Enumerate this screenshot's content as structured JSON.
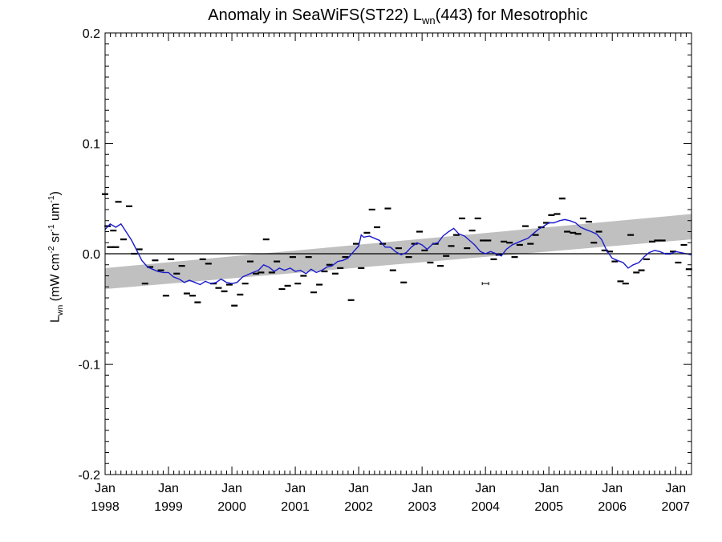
{
  "chart_data": {
    "type": "scatter",
    "title": {
      "pre": "Anomaly in SeaWiFS(ST22) L",
      "sub": "wn",
      "post": "(443) for Mesotrophic"
    },
    "ylabel": {
      "pre": "L",
      "sub": "wn",
      "mid": " (mW cm",
      "sup1": "-2",
      "mid2": " sr",
      "sup2": "-1",
      "mid3": " um",
      "sup3": "-1",
      "post": ")"
    },
    "xlim": [
      1998.0,
      2007.25
    ],
    "ylim": [
      -0.2,
      0.2
    ],
    "yticks": [
      -0.2,
      -0.1,
      0.0,
      0.1,
      0.2
    ],
    "ytick_labels": [
      "-0.2",
      "-0.1",
      "0.0",
      "0.1",
      "0.2"
    ],
    "xticks": [
      1998,
      1999,
      2000,
      2001,
      2002,
      2003,
      2004,
      2005,
      2006,
      2007
    ],
    "xtick_month_label": "Jan",
    "xtick_year_labels": [
      "1998",
      "1999",
      "2000",
      "2001",
      "2002",
      "2003",
      "2004",
      "2005",
      "2006",
      "2007"
    ],
    "zero_line": 0.0,
    "trend_band": {
      "x": [
        1998.0,
        2007.25
      ],
      "lower": [
        -0.032,
        0.013
      ],
      "upper": [
        -0.013,
        0.036
      ],
      "color": "#c0c0c0"
    },
    "colors": {
      "points": "#000000",
      "running_mean": "#1a1acc",
      "axes": "#000000"
    },
    "points": [
      [
        1998.0,
        0.054
      ],
      [
        1998.04,
        0.025
      ],
      [
        1998.08,
        0.006
      ],
      [
        1998.13,
        0.021
      ],
      [
        1998.17,
        0.006
      ],
      [
        1998.21,
        0.047
      ],
      [
        1998.29,
        0.013
      ],
      [
        1998.38,
        0.043
      ],
      [
        1998.46,
        0.0
      ],
      [
        1998.54,
        0.004
      ],
      [
        1998.63,
        -0.027
      ],
      [
        1998.71,
        -0.012
      ],
      [
        1998.79,
        -0.006
      ],
      [
        1998.88,
        -0.015
      ],
      [
        1998.96,
        -0.038
      ],
      [
        1999.04,
        -0.005
      ],
      [
        1999.13,
        -0.018
      ],
      [
        1999.21,
        -0.011
      ],
      [
        1999.29,
        -0.036
      ],
      [
        1999.38,
        -0.038
      ],
      [
        1999.46,
        -0.044
      ],
      [
        1999.54,
        -0.005
      ],
      [
        1999.63,
        -0.009
      ],
      [
        1999.71,
        -0.027
      ],
      [
        1999.79,
        -0.031
      ],
      [
        1999.88,
        -0.034
      ],
      [
        1999.96,
        -0.028
      ],
      [
        2000.04,
        -0.047
      ],
      [
        2000.13,
        -0.037
      ],
      [
        2000.21,
        -0.027
      ],
      [
        2000.29,
        -0.007
      ],
      [
        2000.38,
        -0.018
      ],
      [
        2000.46,
        -0.017
      ],
      [
        2000.54,
        0.013
      ],
      [
        2000.63,
        -0.017
      ],
      [
        2000.71,
        -0.007
      ],
      [
        2000.79,
        -0.032
      ],
      [
        2000.88,
        -0.029
      ],
      [
        2000.96,
        -0.003
      ],
      [
        2001.04,
        -0.027
      ],
      [
        2001.13,
        -0.02
      ],
      [
        2001.21,
        -0.003
      ],
      [
        2001.29,
        -0.035
      ],
      [
        2001.38,
        -0.028
      ],
      [
        2001.46,
        -0.016
      ],
      [
        2001.54,
        -0.01
      ],
      [
        2001.63,
        -0.018
      ],
      [
        2001.71,
        -0.013
      ],
      [
        2001.79,
        -0.003
      ],
      [
        2001.88,
        -0.042
      ],
      [
        2001.96,
        0.009
      ],
      [
        2002.04,
        -0.013
      ],
      [
        2002.13,
        0.019
      ],
      [
        2002.21,
        0.04
      ],
      [
        2002.29,
        0.024
      ],
      [
        2002.38,
        0.009
      ],
      [
        2002.46,
        0.041
      ],
      [
        2002.54,
        -0.015
      ],
      [
        2002.63,
        0.005
      ],
      [
        2002.71,
        -0.026
      ],
      [
        2002.79,
        -0.003
      ],
      [
        2002.88,
        0.009
      ],
      [
        2002.96,
        0.02
      ],
      [
        2003.04,
        0.003
      ],
      [
        2003.13,
        -0.008
      ],
      [
        2003.21,
        0.009
      ],
      [
        2003.29,
        -0.011
      ],
      [
        2003.38,
        -0.002
      ],
      [
        2003.46,
        0.007
      ],
      [
        2003.54,
        0.017
      ],
      [
        2003.63,
        0.032
      ],
      [
        2003.71,
        0.005
      ],
      [
        2003.79,
        0.021
      ],
      [
        2003.88,
        0.032
      ],
      [
        2003.96,
        0.012
      ],
      [
        2004.04,
        0.012
      ],
      [
        2004.13,
        -0.005
      ],
      [
        2004.21,
        -0.001
      ],
      [
        2004.29,
        0.011
      ],
      [
        2004.38,
        0.01
      ],
      [
        2004.46,
        -0.003
      ],
      [
        2004.54,
        0.008
      ],
      [
        2004.63,
        0.025
      ],
      [
        2004.71,
        0.009
      ],
      [
        2004.79,
        0.017
      ],
      [
        2004.88,
        0.024
      ],
      [
        2004.96,
        0.028
      ],
      [
        2005.04,
        0.035
      ],
      [
        2005.13,
        0.036
      ],
      [
        2005.21,
        0.05
      ],
      [
        2005.29,
        0.02
      ],
      [
        2005.38,
        0.019
      ],
      [
        2005.46,
        0.018
      ],
      [
        2005.54,
        0.032
      ],
      [
        2005.63,
        0.029
      ],
      [
        2005.71,
        0.01
      ],
      [
        2005.79,
        0.02
      ],
      [
        2005.88,
        0.003
      ],
      [
        2005.96,
        0.002
      ],
      [
        2006.04,
        -0.007
      ],
      [
        2006.13,
        -0.025
      ],
      [
        2006.21,
        -0.027
      ],
      [
        2006.29,
        0.017
      ],
      [
        2006.38,
        -0.017
      ],
      [
        2006.46,
        -0.015
      ],
      [
        2006.54,
        -0.005
      ],
      [
        2006.63,
        0.011
      ],
      [
        2006.71,
        0.012
      ],
      [
        2006.79,
        0.012
      ],
      [
        2006.88,
        0.0
      ],
      [
        2006.96,
        0.002
      ],
      [
        2007.04,
        -0.008
      ],
      [
        2007.13,
        0.008
      ],
      [
        2007.21,
        -0.014
      ]
    ],
    "running_mean": {
      "x": [
        1998.0,
        1998.08,
        1998.17,
        1998.25,
        1998.33,
        1998.42,
        1998.5,
        1998.58,
        1998.67,
        1998.75,
        1998.83,
        1998.92,
        1999.0,
        1999.08,
        1999.17,
        1999.25,
        1999.33,
        1999.42,
        1999.5,
        1999.58,
        1999.67,
        1999.75,
        1999.83,
        1999.92,
        2000.0,
        2000.08,
        2000.17,
        2000.25,
        2000.33,
        2000.42,
        2000.5,
        2000.58,
        2000.67,
        2000.75,
        2000.83,
        2000.92,
        2001.0,
        2001.08,
        2001.17,
        2001.25,
        2001.33,
        2001.42,
        2001.5,
        2001.58,
        2001.67,
        2001.75,
        2001.83,
        2001.92,
        2002.0,
        2002.04,
        2002.08,
        2002.17,
        2002.25,
        2002.33,
        2002.42,
        2002.5,
        2002.58,
        2002.67,
        2002.75,
        2002.83,
        2002.92,
        2003.0,
        2003.08,
        2003.17,
        2003.25,
        2003.33,
        2003.42,
        2003.5,
        2003.58,
        2003.67,
        2003.75,
        2003.83,
        2003.92,
        2004.0,
        2004.08,
        2004.17,
        2004.25,
        2004.33,
        2004.42,
        2004.5,
        2004.58,
        2004.67,
        2004.75,
        2004.83,
        2004.92,
        2005.0,
        2005.08,
        2005.17,
        2005.25,
        2005.33,
        2005.42,
        2005.5,
        2005.58,
        2005.67,
        2005.75,
        2005.83,
        2005.92,
        2006.0,
        2006.08,
        2006.17,
        2006.25,
        2006.33,
        2006.42,
        2006.5,
        2006.58,
        2006.67,
        2006.75,
        2006.83,
        2006.92,
        2007.0,
        2007.08,
        2007.17,
        2007.25
      ],
      "y": [
        0.022,
        0.027,
        0.024,
        0.027,
        0.02,
        0.012,
        0.003,
        -0.006,
        -0.012,
        -0.014,
        -0.016,
        -0.017,
        -0.017,
        -0.021,
        -0.023,
        -0.026,
        -0.024,
        -0.026,
        -0.028,
        -0.025,
        -0.027,
        -0.026,
        -0.023,
        -0.026,
        -0.027,
        -0.026,
        -0.021,
        -0.019,
        -0.017,
        -0.015,
        -0.01,
        -0.012,
        -0.016,
        -0.013,
        -0.015,
        -0.013,
        -0.016,
        -0.015,
        -0.018,
        -0.014,
        -0.017,
        -0.015,
        -0.012,
        -0.011,
        -0.007,
        -0.006,
        -0.004,
        0.002,
        0.007,
        0.017,
        0.015,
        0.016,
        0.014,
        0.012,
        0.006,
        0.006,
        0.002,
        -0.001,
        0.001,
        0.006,
        0.01,
        0.008,
        0.004,
        0.009,
        0.01,
        0.016,
        0.02,
        0.023,
        0.018,
        0.016,
        0.012,
        0.008,
        0.002,
        0.0,
        0.002,
        0.0,
        -0.002,
        0.004,
        0.008,
        0.01,
        0.012,
        0.014,
        0.018,
        0.022,
        0.025,
        0.028,
        0.028,
        0.03,
        0.031,
        0.03,
        0.028,
        0.024,
        0.022,
        0.02,
        0.018,
        0.013,
        0.002,
        -0.004,
        -0.006,
        -0.008,
        -0.013,
        -0.01,
        -0.008,
        -0.003,
        0.001,
        0.003,
        0.002,
        0.0,
        0.0,
        0.002,
        0.001,
        0.0,
        -0.001
      ]
    },
    "error_bar": {
      "x": 2004.0,
      "y": -0.027,
      "err": 0.0015
    }
  }
}
